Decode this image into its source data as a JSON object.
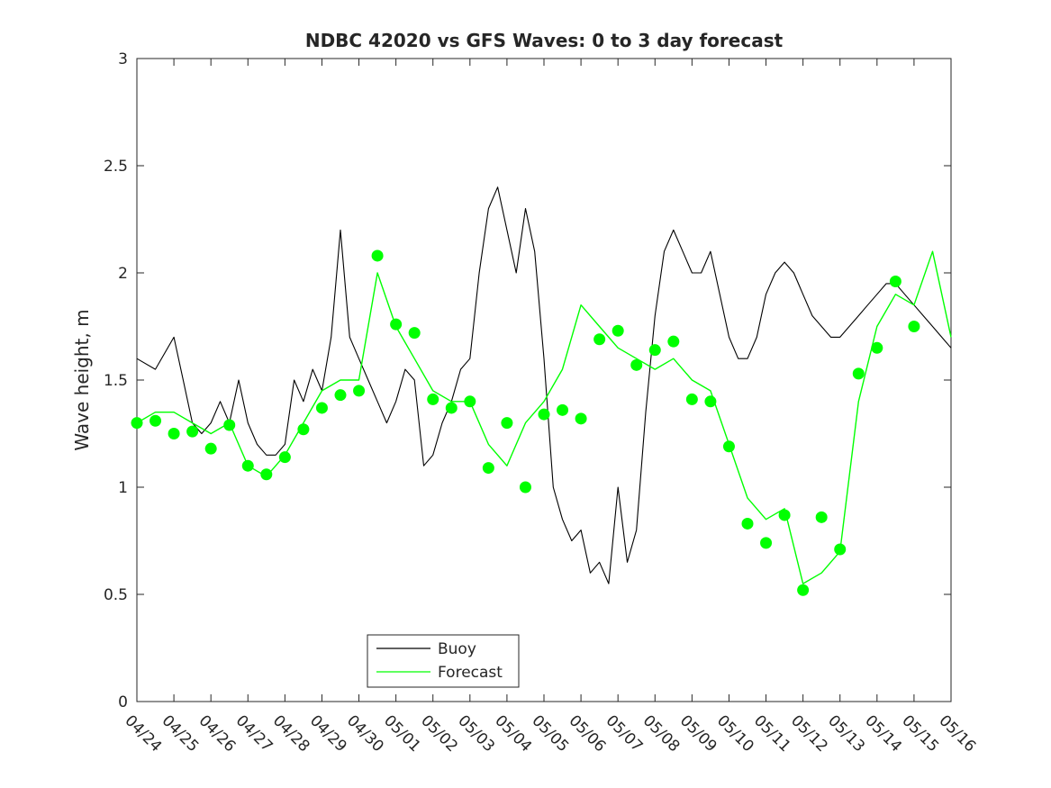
{
  "chart_data": {
    "type": "line",
    "title": "NDBC 42020 vs GFS Waves: 0 to 3 day forecast",
    "xlabel": "",
    "ylabel": "Wave height, m",
    "x_ticks": [
      "04/24",
      "04/25",
      "04/26",
      "04/27",
      "04/28",
      "04/29",
      "04/30",
      "05/01",
      "05/02",
      "05/03",
      "05/04",
      "05/05",
      "05/06",
      "05/07",
      "05/08",
      "05/09",
      "05/10",
      "05/11",
      "05/12",
      "05/13",
      "05/14",
      "05/15",
      "05/16"
    ],
    "xlim": [
      0,
      22
    ],
    "ylim": [
      0,
      3
    ],
    "y_ticks": [
      0,
      0.5,
      1,
      1.5,
      2,
      2.5,
      3
    ],
    "grid": false,
    "legend": {
      "placement": "bottom-center",
      "entries": [
        "Buoy",
        "Forecast"
      ]
    },
    "colors": {
      "buoy": "#000000",
      "forecast": "#00ff00",
      "axis": "#262626"
    },
    "series": [
      {
        "name": "Buoy",
        "style": "line",
        "x": [
          0,
          0.5,
          1,
          1.25,
          1.5,
          1.75,
          2,
          2.25,
          2.5,
          2.75,
          3,
          3.25,
          3.5,
          3.75,
          4,
          4.25,
          4.5,
          4.75,
          5,
          5.25,
          5.5,
          5.75,
          6,
          6.25,
          6.5,
          6.75,
          7,
          7.25,
          7.5,
          7.75,
          8,
          8.25,
          8.5,
          8.75,
          9,
          9.25,
          9.5,
          9.75,
          10,
          10.25,
          10.5,
          10.75,
          11,
          11.25,
          11.5,
          11.75,
          12,
          12.25,
          12.5,
          12.75,
          13,
          13.25,
          13.5,
          13.75,
          14,
          14.25,
          14.5,
          14.75,
          15,
          15.25,
          15.5,
          15.75,
          16,
          16.25,
          16.5,
          16.75,
          17,
          17.25,
          17.5,
          17.75,
          18,
          18.25,
          18.5,
          18.75,
          19,
          19.25,
          19.5,
          19.75,
          20,
          20.25,
          20.5,
          20.75,
          21,
          21.25,
          21.5,
          21.75,
          22
        ],
        "y": [
          1.6,
          1.55,
          1.7,
          1.5,
          1.3,
          1.25,
          1.3,
          1.4,
          1.3,
          1.5,
          1.3,
          1.2,
          1.15,
          1.15,
          1.2,
          1.5,
          1.4,
          1.55,
          1.45,
          1.7,
          2.2,
          1.7,
          1.6,
          1.5,
          1.4,
          1.3,
          1.4,
          1.55,
          1.5,
          1.1,
          1.15,
          1.3,
          1.4,
          1.55,
          1.6,
          2.0,
          2.3,
          2.4,
          2.2,
          2.0,
          2.3,
          2.1,
          1.6,
          1.0,
          0.85,
          0.75,
          0.8,
          0.6,
          0.65,
          0.55,
          1.0,
          0.65,
          0.8,
          1.35,
          1.8,
          2.1,
          2.2,
          2.1,
          2.0,
          2.0,
          2.1,
          1.9,
          1.7,
          1.6,
          1.6,
          1.7,
          1.9,
          2.0,
          2.05,
          2.0,
          1.9,
          1.8,
          1.75,
          1.7,
          1.7,
          1.75,
          1.8,
          1.85,
          1.9,
          1.95,
          1.95,
          1.9,
          1.85,
          1.8,
          1.75,
          1.7,
          1.65
        ]
      },
      {
        "name": "Forecast",
        "style": "line",
        "x": [
          0,
          0.5,
          1,
          1.5,
          2,
          2.5,
          3,
          3.5,
          4,
          4.5,
          5,
          5.5,
          6,
          6.5,
          7,
          7.5,
          8,
          8.5,
          9,
          9.5,
          10,
          10.5,
          11,
          11.5,
          12,
          12.5,
          13,
          13.5,
          14,
          14.5,
          15,
          15.5,
          16,
          16.5,
          17,
          17.5,
          18,
          18.5,
          19,
          19.5,
          20,
          20.5,
          21,
          21.5,
          22
        ],
        "y": [
          1.3,
          1.35,
          1.35,
          1.3,
          1.25,
          1.3,
          1.1,
          1.05,
          1.15,
          1.3,
          1.45,
          1.5,
          1.5,
          2.0,
          1.75,
          1.6,
          1.45,
          1.4,
          1.4,
          1.2,
          1.1,
          1.3,
          1.4,
          1.55,
          1.85,
          1.75,
          1.65,
          1.6,
          1.55,
          1.6,
          1.5,
          1.45,
          1.2,
          0.95,
          0.85,
          0.9,
          0.55,
          0.6,
          0.7,
          1.4,
          1.75,
          1.9,
          1.85,
          2.1,
          1.7
        ]
      },
      {
        "name": "",
        "style": "markers",
        "x": [
          0,
          0.5,
          1,
          1.5,
          2,
          2.5,
          3,
          3.5,
          4,
          4.5,
          5,
          5.5,
          6,
          6.5,
          7,
          7.5,
          8,
          8.5,
          9,
          9.5,
          10,
          10.5,
          11,
          11.5,
          12,
          12.5,
          13,
          13.5,
          14,
          14.5,
          15,
          15.5,
          16,
          16.5,
          17,
          17.5,
          18,
          18.5,
          19,
          19.5,
          20,
          20.5,
          21
        ],
        "y": [
          1.3,
          1.31,
          1.25,
          1.26,
          1.18,
          1.29,
          1.1,
          1.06,
          1.14,
          1.27,
          1.37,
          1.43,
          1.45,
          2.08,
          1.76,
          1.72,
          1.41,
          1.37,
          1.4,
          1.09,
          1.3,
          1.0,
          1.34,
          1.36,
          1.32,
          1.69,
          1.73,
          1.57,
          1.64,
          1.68,
          1.41,
          1.4,
          1.19,
          0.83,
          0.74,
          0.87,
          0.52,
          0.86,
          0.71,
          1.53,
          1.65,
          1.96,
          1.75
        ]
      }
    ]
  }
}
